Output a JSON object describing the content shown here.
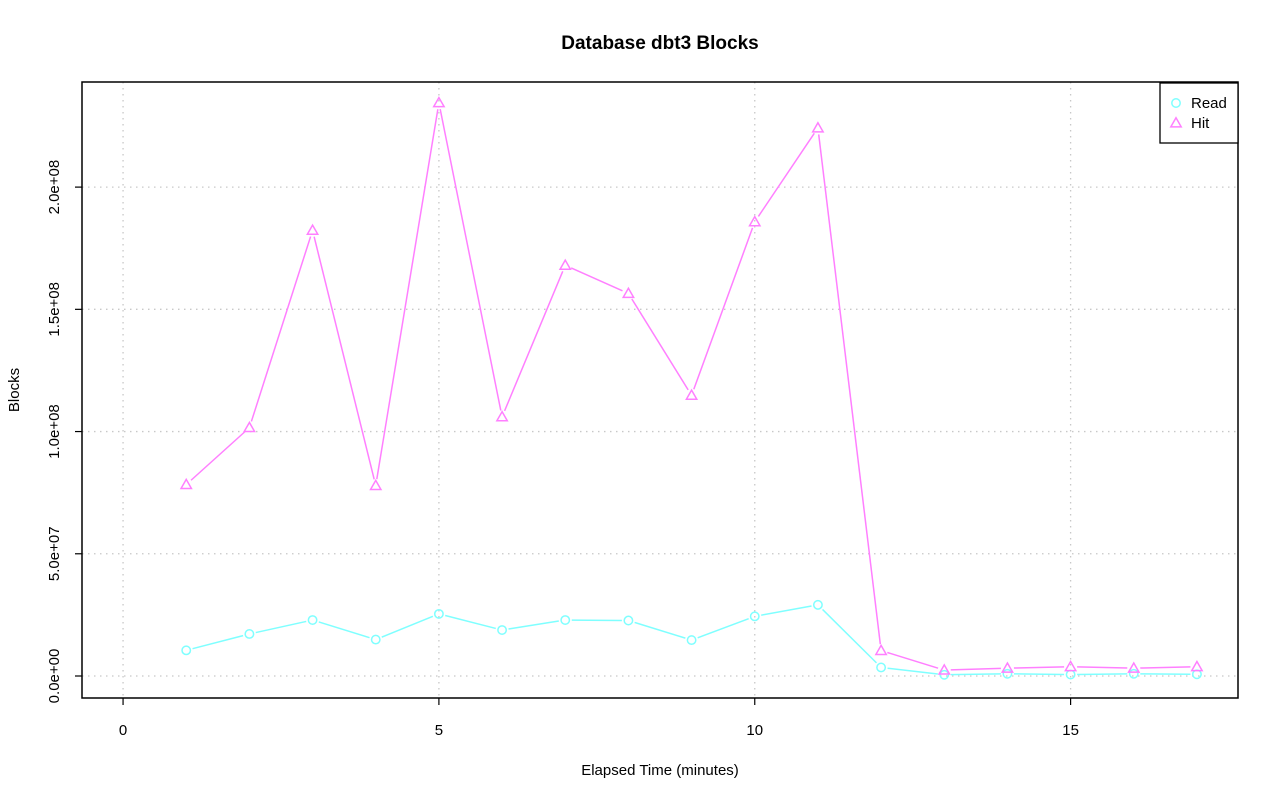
{
  "chart_data": {
    "type": "line",
    "title": "Database dbt3 Blocks",
    "xlabel": "Elapsed Time (minutes)",
    "ylabel": "Blocks",
    "xlim": [
      -0.65,
      17.65
    ],
    "ylim": [
      -9000000,
      243000000
    ],
    "x_ticks": [
      0,
      5,
      10,
      15
    ],
    "x_tick_labels": [
      "0",
      "5",
      "10",
      "15"
    ],
    "y_ticks": [
      0,
      50000000,
      100000000,
      150000000,
      200000000
    ],
    "y_tick_labels": [
      "0.0e+00",
      "5.0e+07",
      "1.0e+08",
      "1.5e+08",
      "2.0e+08"
    ],
    "grid": true,
    "legend_position": "top-right",
    "x": [
      1,
      2,
      3,
      4,
      5,
      6,
      7,
      8,
      9,
      10,
      11,
      12,
      13,
      14,
      15,
      16,
      17
    ],
    "series": [
      {
        "name": "Read",
        "color": "#7fffff",
        "marker": "circle",
        "values": [
          10500000,
          17200000,
          22900000,
          14900000,
          25400000,
          18800000,
          22900000,
          22700000,
          14700000,
          24400000,
          29100000,
          3500000,
          500000,
          900000,
          600000,
          900000,
          700000
        ]
      },
      {
        "name": "Hit",
        "color": "#ff7fff",
        "marker": "triangle",
        "values": [
          78300000,
          101600000,
          182300000,
          77900000,
          234500000,
          106000000,
          168000000,
          156500000,
          114800000,
          185800000,
          224200000,
          10400000,
          2400000,
          3200000,
          3800000,
          3200000,
          3800000
        ]
      }
    ]
  }
}
